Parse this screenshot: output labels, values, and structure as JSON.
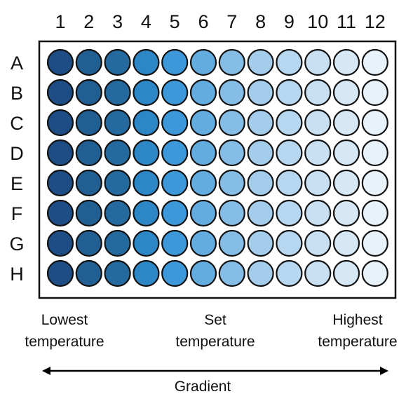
{
  "plate": {
    "column_labels": [
      "1",
      "2",
      "3",
      "4",
      "5",
      "6",
      "7",
      "8",
      "9",
      "10",
      "11",
      "12"
    ],
    "row_labels": [
      "A",
      "B",
      "C",
      "D",
      "E",
      "F",
      "G",
      "H"
    ],
    "column_colors": [
      "#1d4d84",
      "#215f93",
      "#246a9f",
      "#2d86c5",
      "#3d98d9",
      "#63acdf",
      "#85bde6",
      "#a4cdeb",
      "#b6d7ef",
      "#c8e0f2",
      "#d6e8f5",
      "#e8f2fa"
    ],
    "well_outline_color": "#111111",
    "plate_border_color": "#111111"
  },
  "labels": {
    "low": [
      "Lowest",
      "temperature"
    ],
    "mid": [
      "Set",
      "temperature"
    ],
    "high": [
      "Highest",
      "temperature"
    ]
  },
  "gradient_arrow": {
    "label": "Gradient",
    "direction": "both"
  }
}
